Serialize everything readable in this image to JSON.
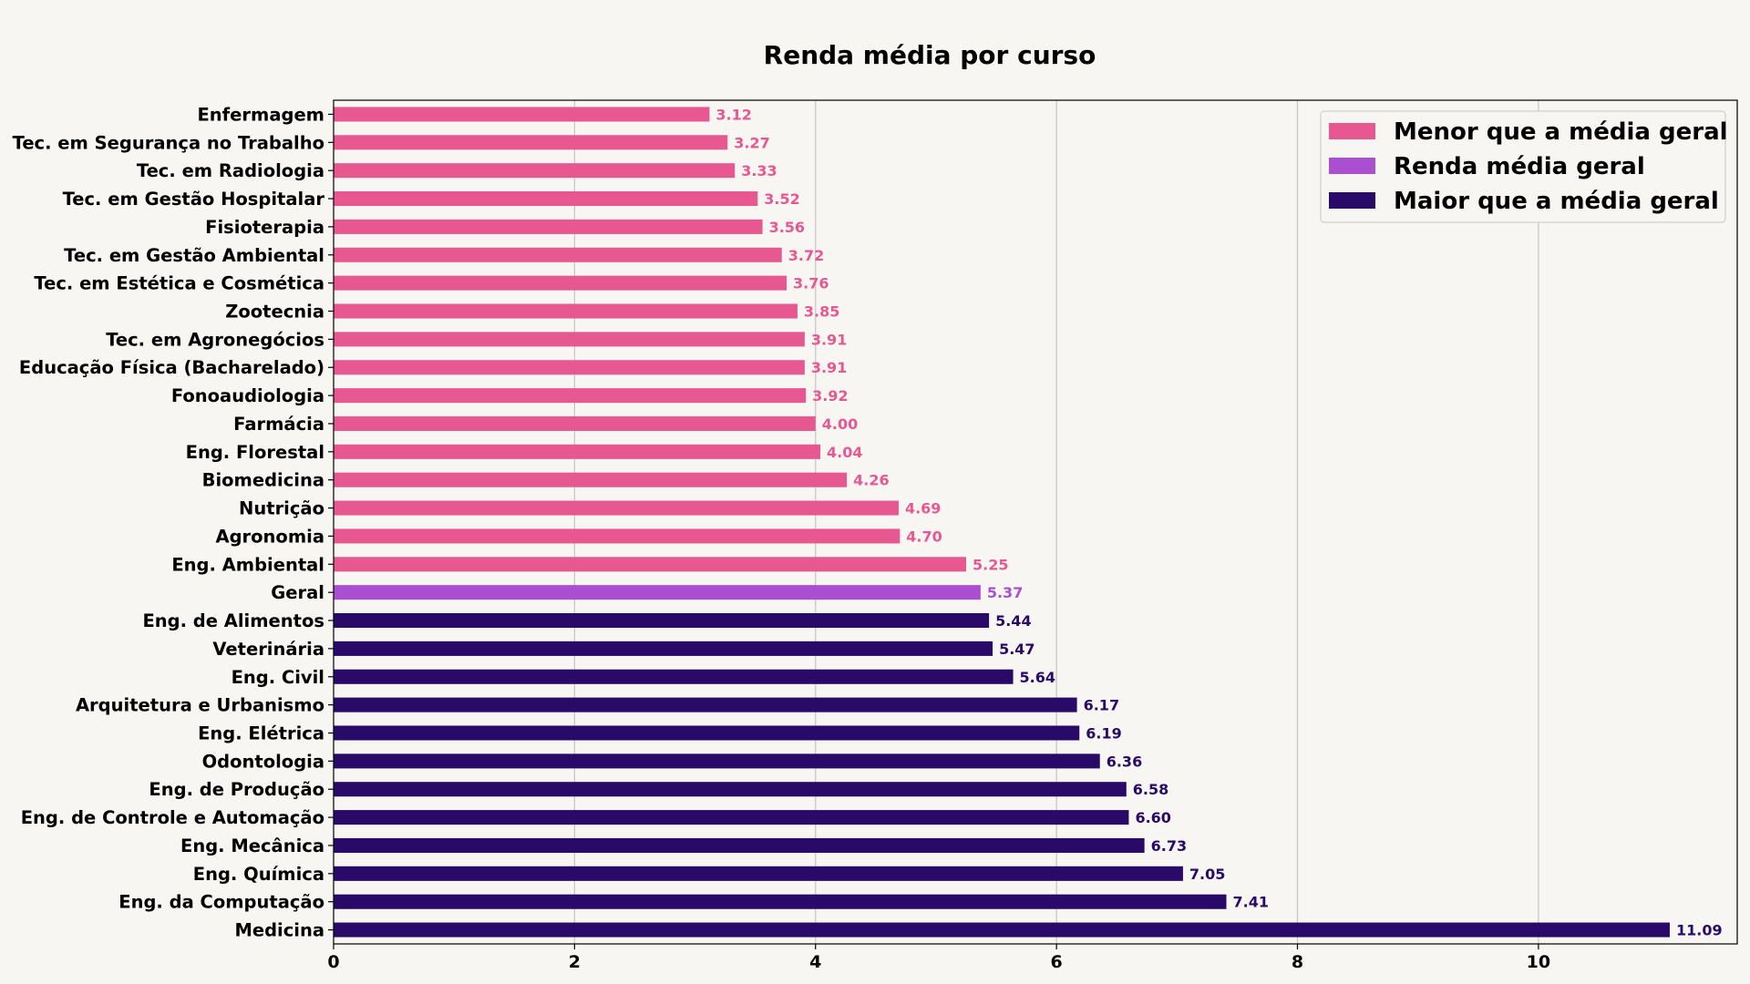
{
  "chart_data": {
    "type": "bar",
    "orientation": "horizontal",
    "title": "Renda média por curso",
    "xlabel": "",
    "ylabel": "",
    "xlim": [
      0,
      11.65
    ],
    "xticks": [
      0,
      2,
      4,
      6,
      8,
      10
    ],
    "grid": "vertical",
    "legend_position": "top-right",
    "colors": {
      "below": "#e85890",
      "average": "#aa4fd0",
      "above": "#2a0a68"
    },
    "legend": [
      {
        "label": "Menor que a média geral",
        "group": "below"
      },
      {
        "label": "Renda média geral",
        "group": "average"
      },
      {
        "label": "Maior que a média geral",
        "group": "above"
      }
    ],
    "categories": [
      "Enfermagem",
      "Tec. em Segurança no Trabalho",
      "Tec. em Radiologia",
      "Tec. em Gestão Hospitalar",
      "Fisioterapia",
      "Tec. em Gestão Ambiental",
      "Tec. em Estética e Cosmética",
      "Zootecnia",
      "Tec. em Agronegócios",
      "Educação Física (Bacharelado)",
      "Fonoaudiologia",
      "Farmácia",
      "Eng. Florestal",
      "Biomedicina",
      "Nutrição",
      "Agronomia",
      "Eng. Ambiental",
      "Geral",
      "Eng. de Alimentos",
      "Veterinária",
      "Eng. Civil",
      "Arquitetura e Urbanismo",
      "Eng. Elétrica",
      "Odontologia",
      "Eng. de Produção",
      "Eng. de Controle e Automação",
      "Eng. Mecânica",
      "Eng. Química",
      "Eng. da Computação",
      "Medicina"
    ],
    "values": [
      3.12,
      3.27,
      3.33,
      3.52,
      3.56,
      3.72,
      3.76,
      3.85,
      3.91,
      3.91,
      3.92,
      4.0,
      4.04,
      4.26,
      4.69,
      4.7,
      5.25,
      5.37,
      5.44,
      5.47,
      5.64,
      6.17,
      6.19,
      6.36,
      6.58,
      6.6,
      6.73,
      7.05,
      7.41,
      11.09
    ],
    "value_labels": [
      "3.12",
      "3.27",
      "3.33",
      "3.52",
      "3.56",
      "3.72",
      "3.76",
      "3.85",
      "3.91",
      "3.91",
      "3.92",
      "4.00",
      "4.04",
      "4.26",
      "4.69",
      "4.70",
      "5.25",
      "5.37",
      "5.44",
      "5.47",
      "5.64",
      "6.17",
      "6.19",
      "6.36",
      "6.58",
      "6.60",
      "6.73",
      "7.05",
      "7.41",
      "11.09"
    ],
    "groups": [
      "below",
      "below",
      "below",
      "below",
      "below",
      "below",
      "below",
      "below",
      "below",
      "below",
      "below",
      "below",
      "below",
      "below",
      "below",
      "below",
      "below",
      "average",
      "above",
      "above",
      "above",
      "above",
      "above",
      "above",
      "above",
      "above",
      "above",
      "above",
      "above",
      "above"
    ]
  }
}
